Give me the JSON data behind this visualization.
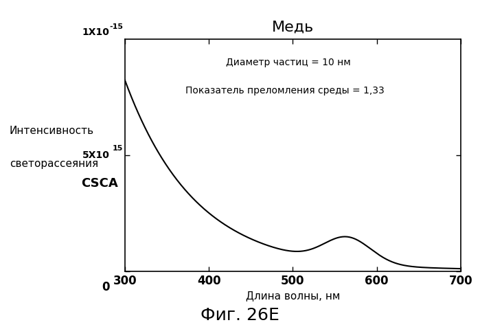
{
  "title": "Медь",
  "xlabel": "Длина волны, нм",
  "ylabel_line1": "Интенсивность",
  "ylabel_line2": "светорассеяния",
  "ylabel_csca": "CSCA",
  "annotation1": "Диаметр частиц = 10 нм",
  "annotation2": "Показатель преломления среды = 1,33",
  "fig_label": "Фиг. 26Е",
  "xmin": 300,
  "xmax": 700,
  "ymin": 0,
  "ymax": 1e-15,
  "ytick_label_top": "1X10",
  "ytick_label_mid": "5X10",
  "line_color": "#000000",
  "background_color": "#ffffff",
  "xticks": [
    300,
    400,
    500,
    600,
    700
  ]
}
